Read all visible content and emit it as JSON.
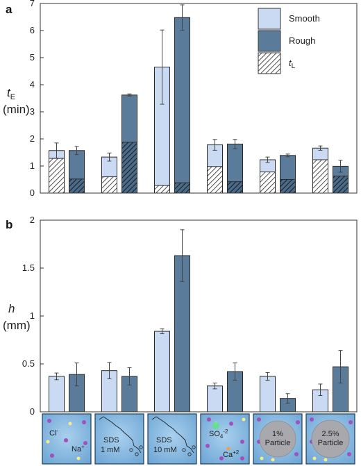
{
  "panel_labels": [
    "a",
    "b"
  ],
  "conditions": [
    {
      "key": "nacl",
      "texts": [
        "Cl",
        "-",
        "Na",
        "+"
      ]
    },
    {
      "key": "sds1",
      "texts": [
        "SDS",
        "1 mM"
      ]
    },
    {
      "key": "sds10",
      "texts": [
        "SDS",
        "10 mM"
      ]
    },
    {
      "key": "caso4",
      "texts": [
        "SO",
        "4",
        "-2",
        "Ca",
        "+2"
      ]
    },
    {
      "key": "p1",
      "texts": [
        "1%",
        "Particle"
      ]
    },
    {
      "key": "p25",
      "texts": [
        "2.5%",
        "Particle"
      ]
    }
  ],
  "colors": {
    "smooth": "#c9daf2",
    "rough": "#5a7b9a",
    "inset_bg": "#7fb3d9",
    "ion_purple": "#a24fc0",
    "ion_yellow": "#f4ec8a",
    "ion_green": "#5fe08a",
    "ion_orange": "#f0a040",
    "particle": "#a9a9ad"
  },
  "chart_data": [
    {
      "type": "bar",
      "panel": "a",
      "ylabel": "t",
      "ylabel_sub": "E",
      "ylabel_unit": "(min)",
      "ylim": [
        0,
        7
      ],
      "yticks": [
        "0",
        "1",
        "2",
        "3",
        "4",
        "5",
        "6",
        "7"
      ],
      "legend": [
        {
          "name": "Smooth",
          "sub": ""
        },
        {
          "name": "Rough",
          "sub": ""
        },
        {
          "name": "t",
          "sub": "L"
        }
      ],
      "legend_position": "top-right",
      "series": [
        {
          "name": "Smooth",
          "values": [
            1.57,
            1.33,
            4.65,
            1.78,
            1.23,
            1.66
          ],
          "errors": [
            0.28,
            0.15,
            1.37,
            0.2,
            0.1,
            0.08
          ],
          "tL": [
            1.28,
            0.6,
            0.28,
            0.98,
            0.78,
            1.23
          ]
        },
        {
          "name": "Rough",
          "values": [
            1.57,
            3.62,
            6.48,
            1.81,
            1.39,
            0.99
          ],
          "errors": [
            0.15,
            0.04,
            0.47,
            0.17,
            0.05,
            0.22
          ],
          "tL": [
            0.52,
            1.88,
            0.38,
            0.42,
            0.5,
            0.63
          ]
        }
      ]
    },
    {
      "type": "bar",
      "panel": "b",
      "ylabel": "h",
      "ylabel_unit": "(mm)",
      "ylim": [
        0,
        2
      ],
      "yticks": [
        "0",
        "0.5",
        "1",
        "1.5",
        "2"
      ],
      "series": [
        {
          "name": "Smooth",
          "values": [
            0.37,
            0.43,
            0.84,
            0.27,
            0.37,
            0.23
          ],
          "errors": [
            0.035,
            0.085,
            0.025,
            0.03,
            0.04,
            0.06
          ]
        },
        {
          "name": "Rough",
          "values": [
            0.39,
            0.37,
            1.63,
            0.42,
            0.14,
            0.47
          ],
          "errors": [
            0.12,
            0.09,
            0.27,
            0.09,
            0.05,
            0.17
          ]
        }
      ]
    }
  ]
}
